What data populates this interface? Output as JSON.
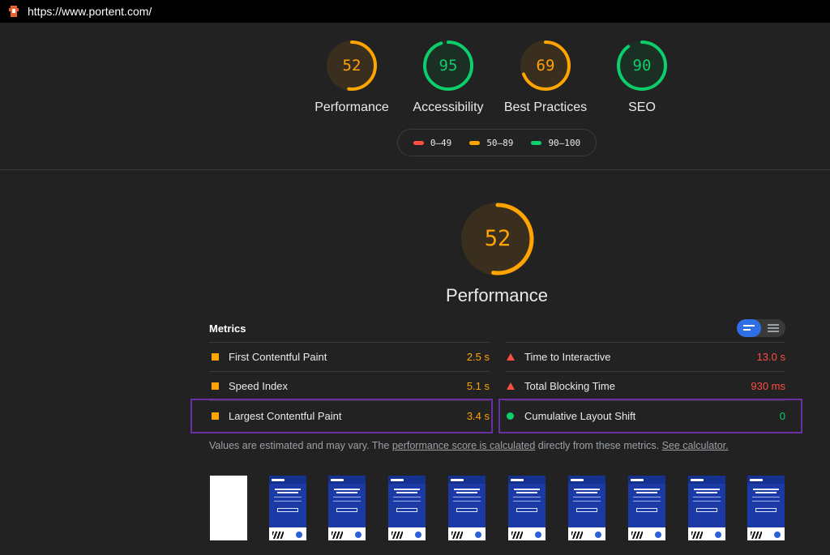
{
  "browser": {
    "url": "https://www.portent.com/"
  },
  "colors": {
    "fail": "#ff4e42",
    "average": "#ffa400",
    "pass": "#0cce6b"
  },
  "categories": [
    {
      "label": "Performance",
      "score": 52,
      "status": "average"
    },
    {
      "label": "Accessibility",
      "score": 95,
      "status": "pass"
    },
    {
      "label": "Best Practices",
      "score": 69,
      "status": "average"
    },
    {
      "label": "SEO",
      "score": 90,
      "status": "pass"
    }
  ],
  "legend": [
    {
      "label": "0–49",
      "status": "fail"
    },
    {
      "label": "50–89",
      "status": "average"
    },
    {
      "label": "90–100",
      "status": "pass"
    }
  ],
  "performance": {
    "score": 52,
    "title": "Performance"
  },
  "metrics": {
    "header": "Metrics",
    "items": [
      {
        "name": "First Contentful Paint",
        "value": "2.5 s",
        "status": "average",
        "icon": "square-icon"
      },
      {
        "name": "Time to Interactive",
        "value": "13.0 s",
        "status": "fail",
        "icon": "triangle-icon"
      },
      {
        "name": "Speed Index",
        "value": "5.1 s",
        "status": "average",
        "icon": "square-icon"
      },
      {
        "name": "Total Blocking Time",
        "value": "930 ms",
        "status": "fail",
        "icon": "triangle-icon"
      },
      {
        "name": "Largest Contentful Paint",
        "value": "3.4 s",
        "status": "average",
        "icon": "square-icon"
      },
      {
        "name": "Cumulative Layout Shift",
        "value": "0",
        "status": "pass",
        "icon": "circle-icon"
      }
    ]
  },
  "note": {
    "prefix": "Values are estimated and may vary. The ",
    "link1": "performance score is calculated",
    "middle": " directly from these metrics. ",
    "link2": "See calculator."
  }
}
